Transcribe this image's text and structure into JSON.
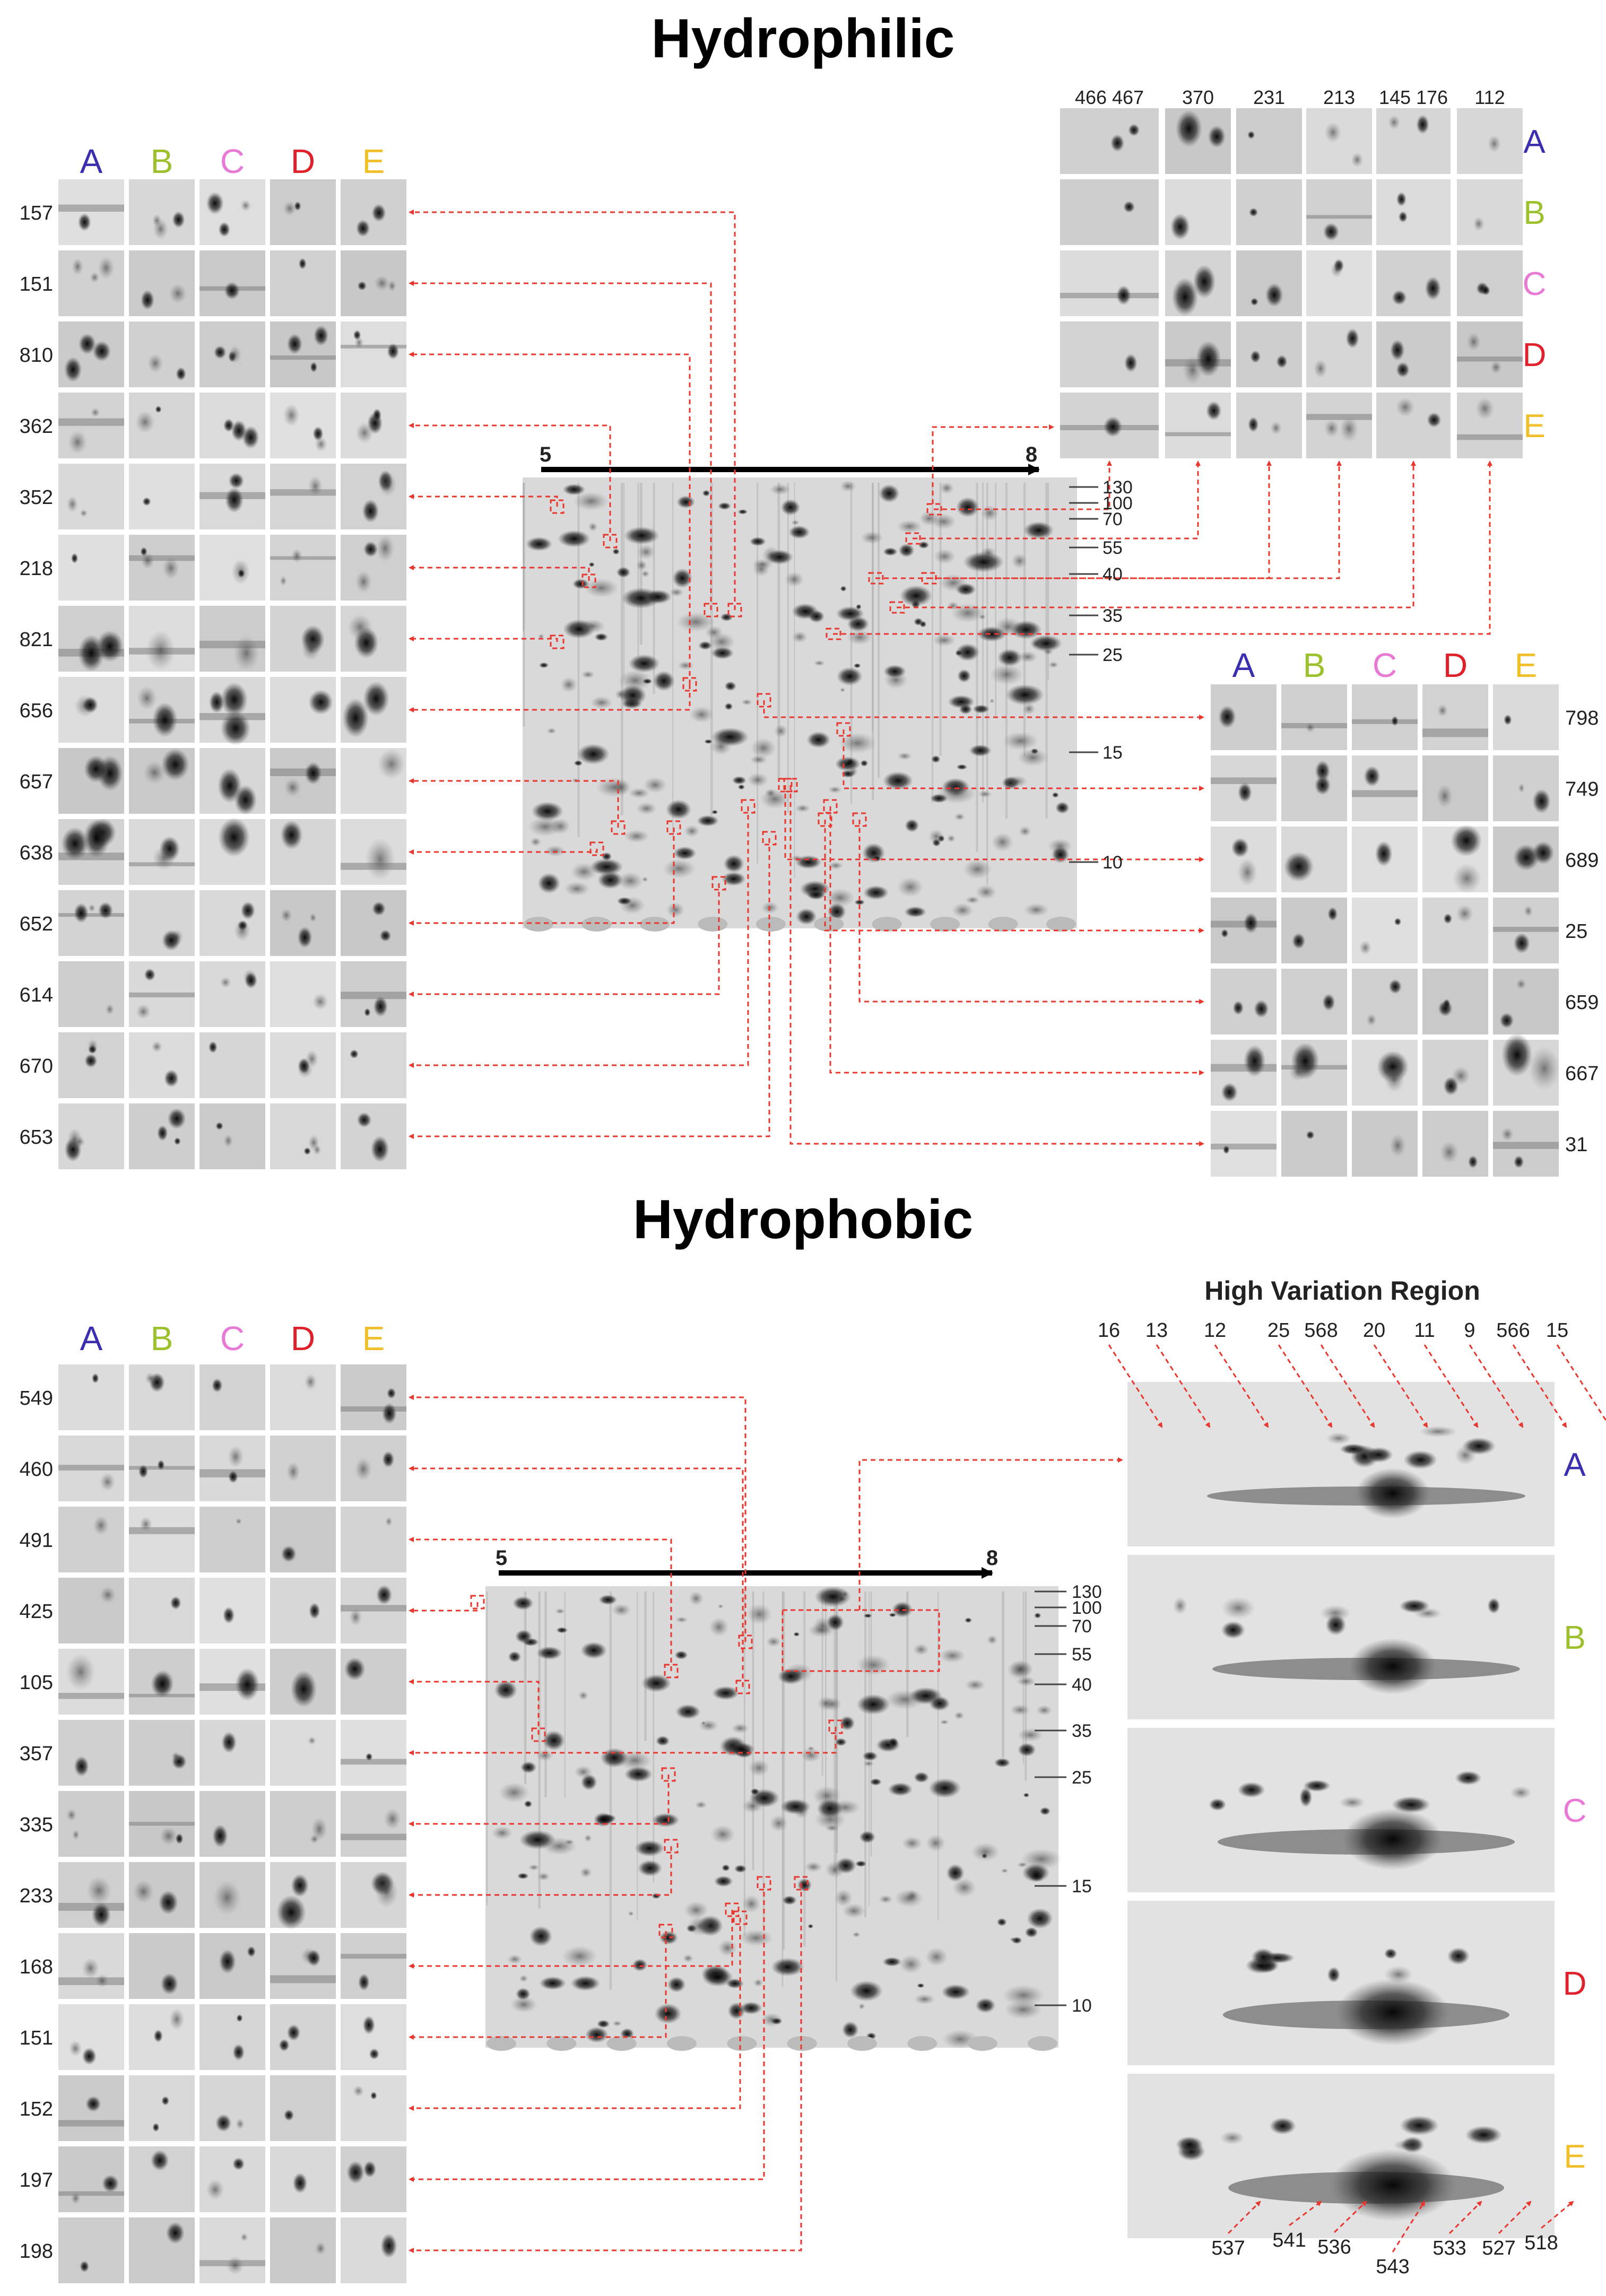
{
  "titles": {
    "hydrophilic": "Hydrophilic",
    "hydrophobic": "Hydrophobic",
    "high_variation": "High Variation Region"
  },
  "letters": [
    "A",
    "B",
    "C",
    "D",
    "E"
  ],
  "letter_colors": {
    "A": "#3b2fb0",
    "B": "#9cc12c",
    "C": "#e87ad6",
    "D": "#e0202a",
    "E": "#f0bf2a"
  },
  "pI_axis": {
    "start": "5",
    "end": "8"
  },
  "mw_markers": [
    "130",
    "100",
    "70",
    "55",
    "40",
    "35",
    "25",
    "15",
    "10"
  ],
  "hydrophilic_left_spots": [
    "157",
    "151",
    "810",
    "362",
    "352",
    "218",
    "821",
    "656",
    "657",
    "638",
    "652",
    "614",
    "670",
    "653"
  ],
  "hydrophilic_top_spots": [
    "466 467",
    "370",
    "231",
    "213",
    "145 176",
    "112"
  ],
  "hydrophilic_right_spots": [
    "798",
    "749",
    "689",
    "25",
    "659",
    "667",
    "31"
  ],
  "hydrophobic_left_spots": [
    "549",
    "460",
    "491",
    "425",
    "105",
    "357",
    "335",
    "233",
    "168",
    "151",
    "152",
    "197",
    "198"
  ],
  "hvr_top_labels": [
    "16",
    "13",
    "12",
    "25",
    "568",
    "20",
    "11",
    "9",
    "566",
    "15"
  ],
  "hvr_bottom_labels": [
    "537",
    "541",
    "536",
    "543",
    "533",
    "527",
    "518"
  ]
}
